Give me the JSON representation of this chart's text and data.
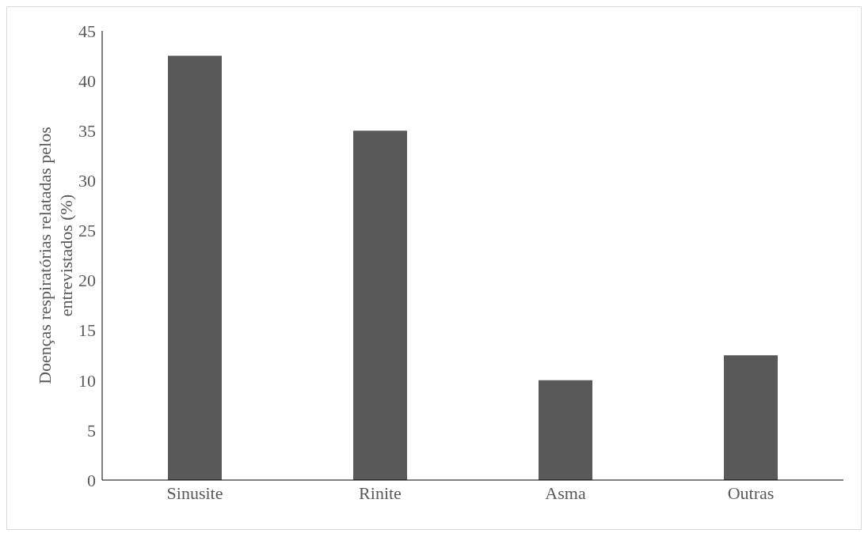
{
  "chart_data": {
    "type": "bar",
    "ylabel": "Doenças respiratórias relatadas pelos entrevistados (%)",
    "categories": [
      "Sinusite",
      "Rinite",
      "Asma",
      "Outras"
    ],
    "values": [
      42.5,
      35,
      10,
      12.5
    ],
    "color": "#595959",
    "ylim": [
      0,
      45
    ],
    "yticks": [
      0,
      5,
      10,
      15,
      20,
      25,
      30,
      35,
      40,
      45
    ],
    "grid": false
  }
}
